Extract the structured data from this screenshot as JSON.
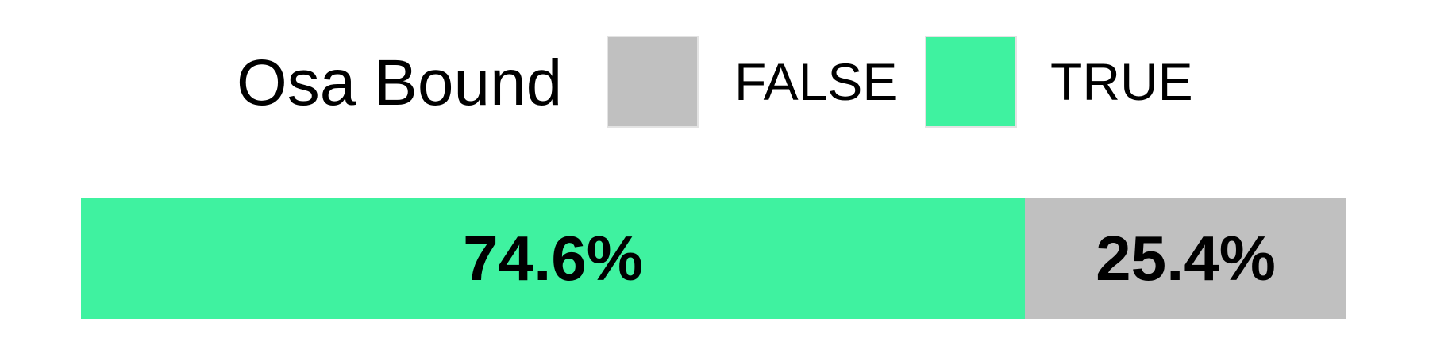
{
  "legend": {
    "title": "Osa Bound",
    "items": [
      {
        "label": "FALSE",
        "color": "#c0c0c0"
      },
      {
        "label": "TRUE",
        "color": "#3ff2a0"
      }
    ]
  },
  "chart_data": {
    "type": "bar",
    "orientation": "horizontal-stacked-100",
    "title": "",
    "legend_title": "Osa Bound",
    "legend_position": "top",
    "xlabel": "",
    "ylabel": "",
    "xlim": [
      0,
      100
    ],
    "grid": false,
    "segments": [
      {
        "category": "TRUE",
        "value": 74.6,
        "label": "74.6%",
        "color": "#3ff2a0"
      },
      {
        "category": "FALSE",
        "value": 25.4,
        "label": "25.4%",
        "color": "#c0c0c0"
      }
    ]
  }
}
